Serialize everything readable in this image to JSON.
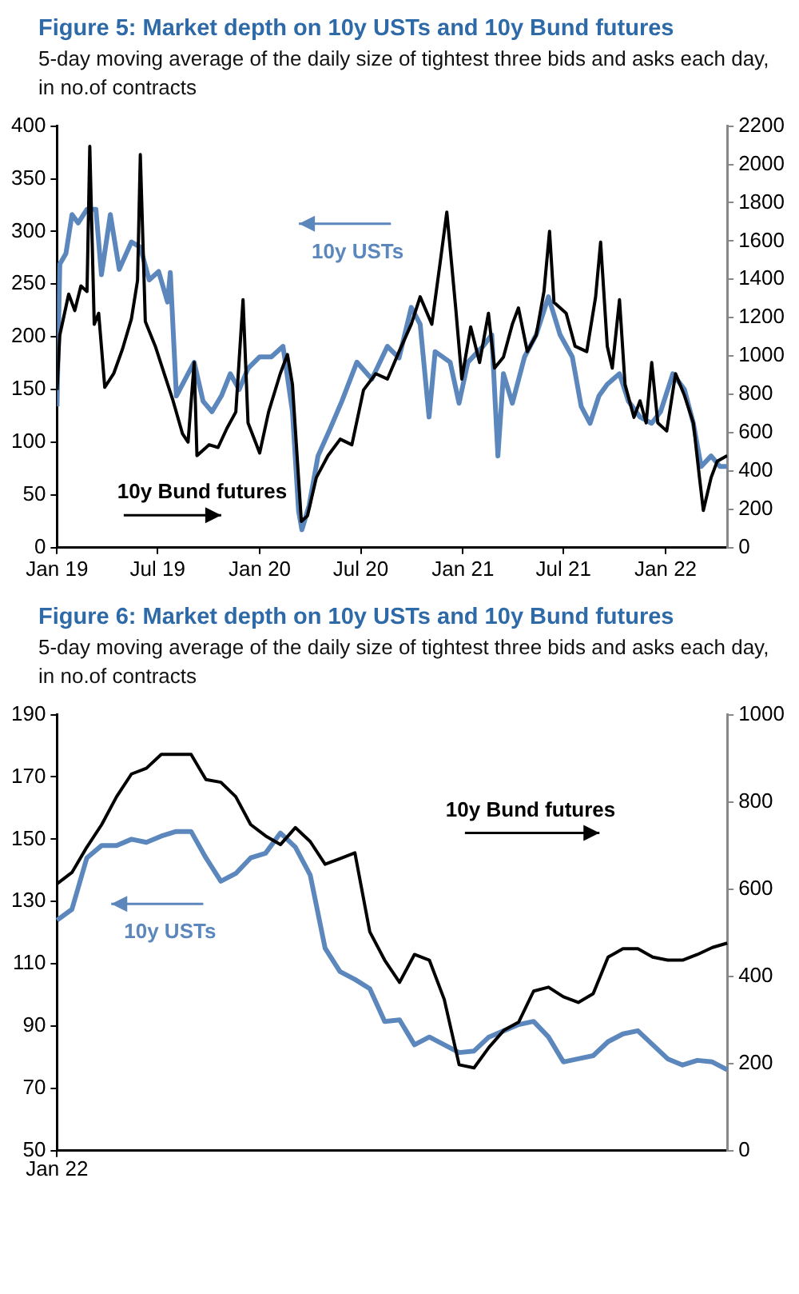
{
  "chart_data": [
    {
      "type": "line",
      "title": "Figure 5: Market depth on 10y USTs and 10y Bund futures",
      "subtitle": "5-day moving average of the daily size of tightest three bids and asks each day, in no.of contracts",
      "xlim": [
        "2019-01-01",
        "2022-04-22"
      ],
      "xticks": [
        {
          "value": "2019-01-01",
          "label": "Jan 19"
        },
        {
          "value": "2019-07-01",
          "label": "Jul 19"
        },
        {
          "value": "2020-01-01",
          "label": "Jan 20"
        },
        {
          "value": "2020-07-01",
          "label": "Jul 20"
        },
        {
          "value": "2021-01-01",
          "label": "Jan 21"
        },
        {
          "value": "2021-07-01",
          "label": "Jul 21"
        },
        {
          "value": "2022-01-01",
          "label": "Jan 22"
        }
      ],
      "ylim": [
        0,
        400
      ],
      "yticks": [
        0,
        50,
        100,
        150,
        200,
        250,
        300,
        350,
        400
      ],
      "y2lim": [
        0,
        2200
      ],
      "y2ticks": [
        0,
        200,
        400,
        600,
        800,
        1000,
        1200,
        1400,
        1600,
        1800,
        2000,
        2200
      ],
      "grid": false,
      "legend": "top",
      "marker": "none",
      "series": [
        {
          "name": "10y USTs",
          "color": "#5b87bd",
          "axis": "y",
          "x": [
            "2019-01-01",
            "2019-01-06",
            "2019-01-17",
            "2019-01-28",
            "2019-02-08",
            "2019-02-24",
            "2019-03-12",
            "2019-03-22",
            "2019-04-07",
            "2019-04-23",
            "2019-05-15",
            "2019-05-31",
            "2019-06-16",
            "2019-07-03",
            "2019-07-19",
            "2019-07-24",
            "2019-08-04",
            "2019-08-20",
            "2019-09-05",
            "2019-09-21",
            "2019-10-07",
            "2019-10-24",
            "2019-11-09",
            "2019-11-25",
            "2019-12-11",
            "2020-01-01",
            "2020-01-22",
            "2020-02-12",
            "2020-02-29",
            "2020-03-11",
            "2020-03-17",
            "2020-03-30",
            "2020-04-15",
            "2020-05-07",
            "2020-05-28",
            "2020-06-24",
            "2020-07-21",
            "2020-08-18",
            "2020-09-08",
            "2020-09-30",
            "2020-10-16",
            "2020-11-01",
            "2020-11-12",
            "2020-12-09",
            "2020-12-25",
            "2021-01-10",
            "2021-02-06",
            "2021-02-22",
            "2021-03-05",
            "2021-03-15",
            "2021-03-31",
            "2021-04-22",
            "2021-05-13",
            "2021-06-04",
            "2021-06-25",
            "2021-07-17",
            "2021-08-02",
            "2021-08-18",
            "2021-09-03",
            "2021-09-18",
            "2021-10-10",
            "2021-10-26",
            "2021-11-16",
            "2021-12-07",
            "2021-12-23",
            "2022-01-14",
            "2022-02-04",
            "2022-02-20",
            "2022-03-06",
            "2022-03-24",
            "2022-04-09",
            "2022-04-22"
          ],
          "values": [
            134,
            269,
            279,
            316,
            308,
            321,
            321,
            259,
            316,
            264,
            290,
            285,
            254,
            262,
            233,
            261,
            144,
            160,
            176,
            139,
            129,
            144,
            165,
            150,
            170,
            181,
            181,
            191,
            129,
            35,
            17,
            40,
            87,
            113,
            139,
            176,
            160,
            191,
            180,
            228,
            212,
            124,
            186,
            176,
            137,
            176,
            191,
            202,
            87,
            165,
            137,
            181,
            202,
            238,
            202,
            181,
            134,
            118,
            144,
            155,
            165,
            139,
            124,
            118,
            129,
            165,
            150,
            118,
            77,
            87,
            77,
            77
          ]
        },
        {
          "name": "10y Bund futures",
          "color": "#000000",
          "axis": "y2",
          "x": [
            "2019-01-01",
            "2019-01-06",
            "2019-01-22",
            "2019-02-02",
            "2019-02-13",
            "2019-02-24",
            "2019-03-01",
            "2019-03-09",
            "2019-03-17",
            "2019-03-28",
            "2019-04-13",
            "2019-04-29",
            "2019-05-15",
            "2019-05-26",
            "2019-05-31",
            "2019-06-09",
            "2019-06-27",
            "2019-07-13",
            "2019-07-29",
            "2019-08-15",
            "2019-08-25",
            "2019-09-05",
            "2019-09-10",
            "2019-10-02",
            "2019-10-18",
            "2019-11-03",
            "2019-11-19",
            "2019-12-02",
            "2019-12-11",
            "2020-01-01",
            "2020-01-17",
            "2020-02-07",
            "2020-02-20",
            "2020-02-29",
            "2020-03-16",
            "2020-03-27",
            "2020-04-12",
            "2020-05-03",
            "2020-05-25",
            "2020-06-15",
            "2020-07-06",
            "2020-07-28",
            "2020-08-18",
            "2020-09-08",
            "2020-09-30",
            "2020-10-16",
            "2020-11-06",
            "2020-11-22",
            "2020-12-03",
            "2020-12-19",
            "2020-12-30",
            "2021-01-15",
            "2021-01-31",
            "2021-02-16",
            "2021-02-27",
            "2021-03-15",
            "2021-03-31",
            "2021-04-11",
            "2021-04-27",
            "2021-05-13",
            "2021-05-27",
            "2021-06-06",
            "2021-06-14",
            "2021-07-06",
            "2021-07-22",
            "2021-08-12",
            "2021-08-28",
            "2021-09-06",
            "2021-09-18",
            "2021-09-27",
            "2021-10-10",
            "2021-10-20",
            "2021-11-05",
            "2021-11-16",
            "2021-11-27",
            "2021-12-07",
            "2021-12-18",
            "2022-01-03",
            "2022-01-19",
            "2022-02-04",
            "2022-02-20",
            "2022-03-03",
            "2022-03-10",
            "2022-03-24",
            "2022-04-04",
            "2022-04-22"
          ],
          "values": [
            823,
            1109,
            1323,
            1237,
            1366,
            1337,
            2094,
            1166,
            1223,
            837,
            908,
            1037,
            1194,
            1394,
            2051,
            1180,
            1051,
            908,
            766,
            594,
            551,
            966,
            480,
            537,
            523,
            623,
            708,
            1294,
            651,
            494,
            708,
            908,
            1008,
            851,
            137,
            166,
            366,
            480,
            566,
            537,
            823,
            908,
            880,
            1023,
            1166,
            1309,
            1166,
            1509,
            1751,
            1251,
            880,
            1152,
            966,
            1223,
            937,
            994,
            1166,
            1251,
            1023,
            1109,
            1337,
            1651,
            1280,
            1223,
            1051,
            1023,
            1309,
            1594,
            1051,
            937,
            1294,
            851,
            680,
            766,
            651,
            966,
            651,
            609,
            908,
            794,
            651,
            366,
            194,
            366,
            451,
            480
          ]
        }
      ]
    },
    {
      "type": "line",
      "title": "Figure 6: Market depth on 10y USTs and 10y Bund futures",
      "subtitle": "5-day moving average of the daily size of tightest three bids and asks each day, in no.of contracts",
      "categories": [
        "Jan 22",
        null,
        null,
        null,
        null,
        null,
        null,
        null,
        null,
        null,
        null,
        null,
        null,
        null,
        null,
        null,
        null,
        null,
        null,
        null,
        null,
        null,
        null,
        null,
        null,
        null,
        null,
        null,
        null,
        null,
        null,
        null,
        null,
        null,
        null,
        null,
        null,
        null,
        null,
        null,
        null,
        null,
        null,
        null,
        null,
        null
      ],
      "ylim": [
        50,
        190
      ],
      "yticks": [
        50,
        70,
        90,
        110,
        130,
        150,
        170,
        190
      ],
      "y2lim": [
        0,
        1000
      ],
      "y2ticks": [
        0,
        200,
        400,
        600,
        800,
        1000
      ],
      "grid": false,
      "legend": "top left",
      "marker": "none",
      "series": [
        {
          "name": "10y USTs",
          "color": "#5b87bd",
          "axis": "y",
          "values": [
            124,
            127.5,
            144,
            148,
            148,
            150,
            149,
            151,
            152.5,
            152.5,
            144,
            136.5,
            139,
            144,
            145.5,
            152,
            147.5,
            138.5,
            115,
            107.5,
            105,
            102,
            91.5,
            92,
            84,
            86.5,
            84,
            81.5,
            82,
            86.5,
            88.5,
            90.5,
            91.5,
            86.5,
            78.5,
            79.5,
            80.5,
            85,
            87.5,
            88.5,
            84,
            79.5,
            77.5,
            79,
            78.5,
            76
          ]
        },
        {
          "name": "10y Bund futures",
          "color": "#000000",
          "axis": "y2",
          "values": [
            612,
            638,
            696,
            748,
            812,
            864,
            877,
            909,
            909,
            909,
            851,
            845,
            812,
            748,
            722,
            702,
            741,
            709,
            657,
            670,
            683,
            502,
            437,
            386,
            450,
            437,
            347,
            197,
            190,
            237,
            276,
            295,
            366,
            375,
            353,
            340,
            360,
            444,
            463,
            463,
            444,
            437,
            437,
            450,
            466,
            476
          ]
        }
      ]
    }
  ]
}
